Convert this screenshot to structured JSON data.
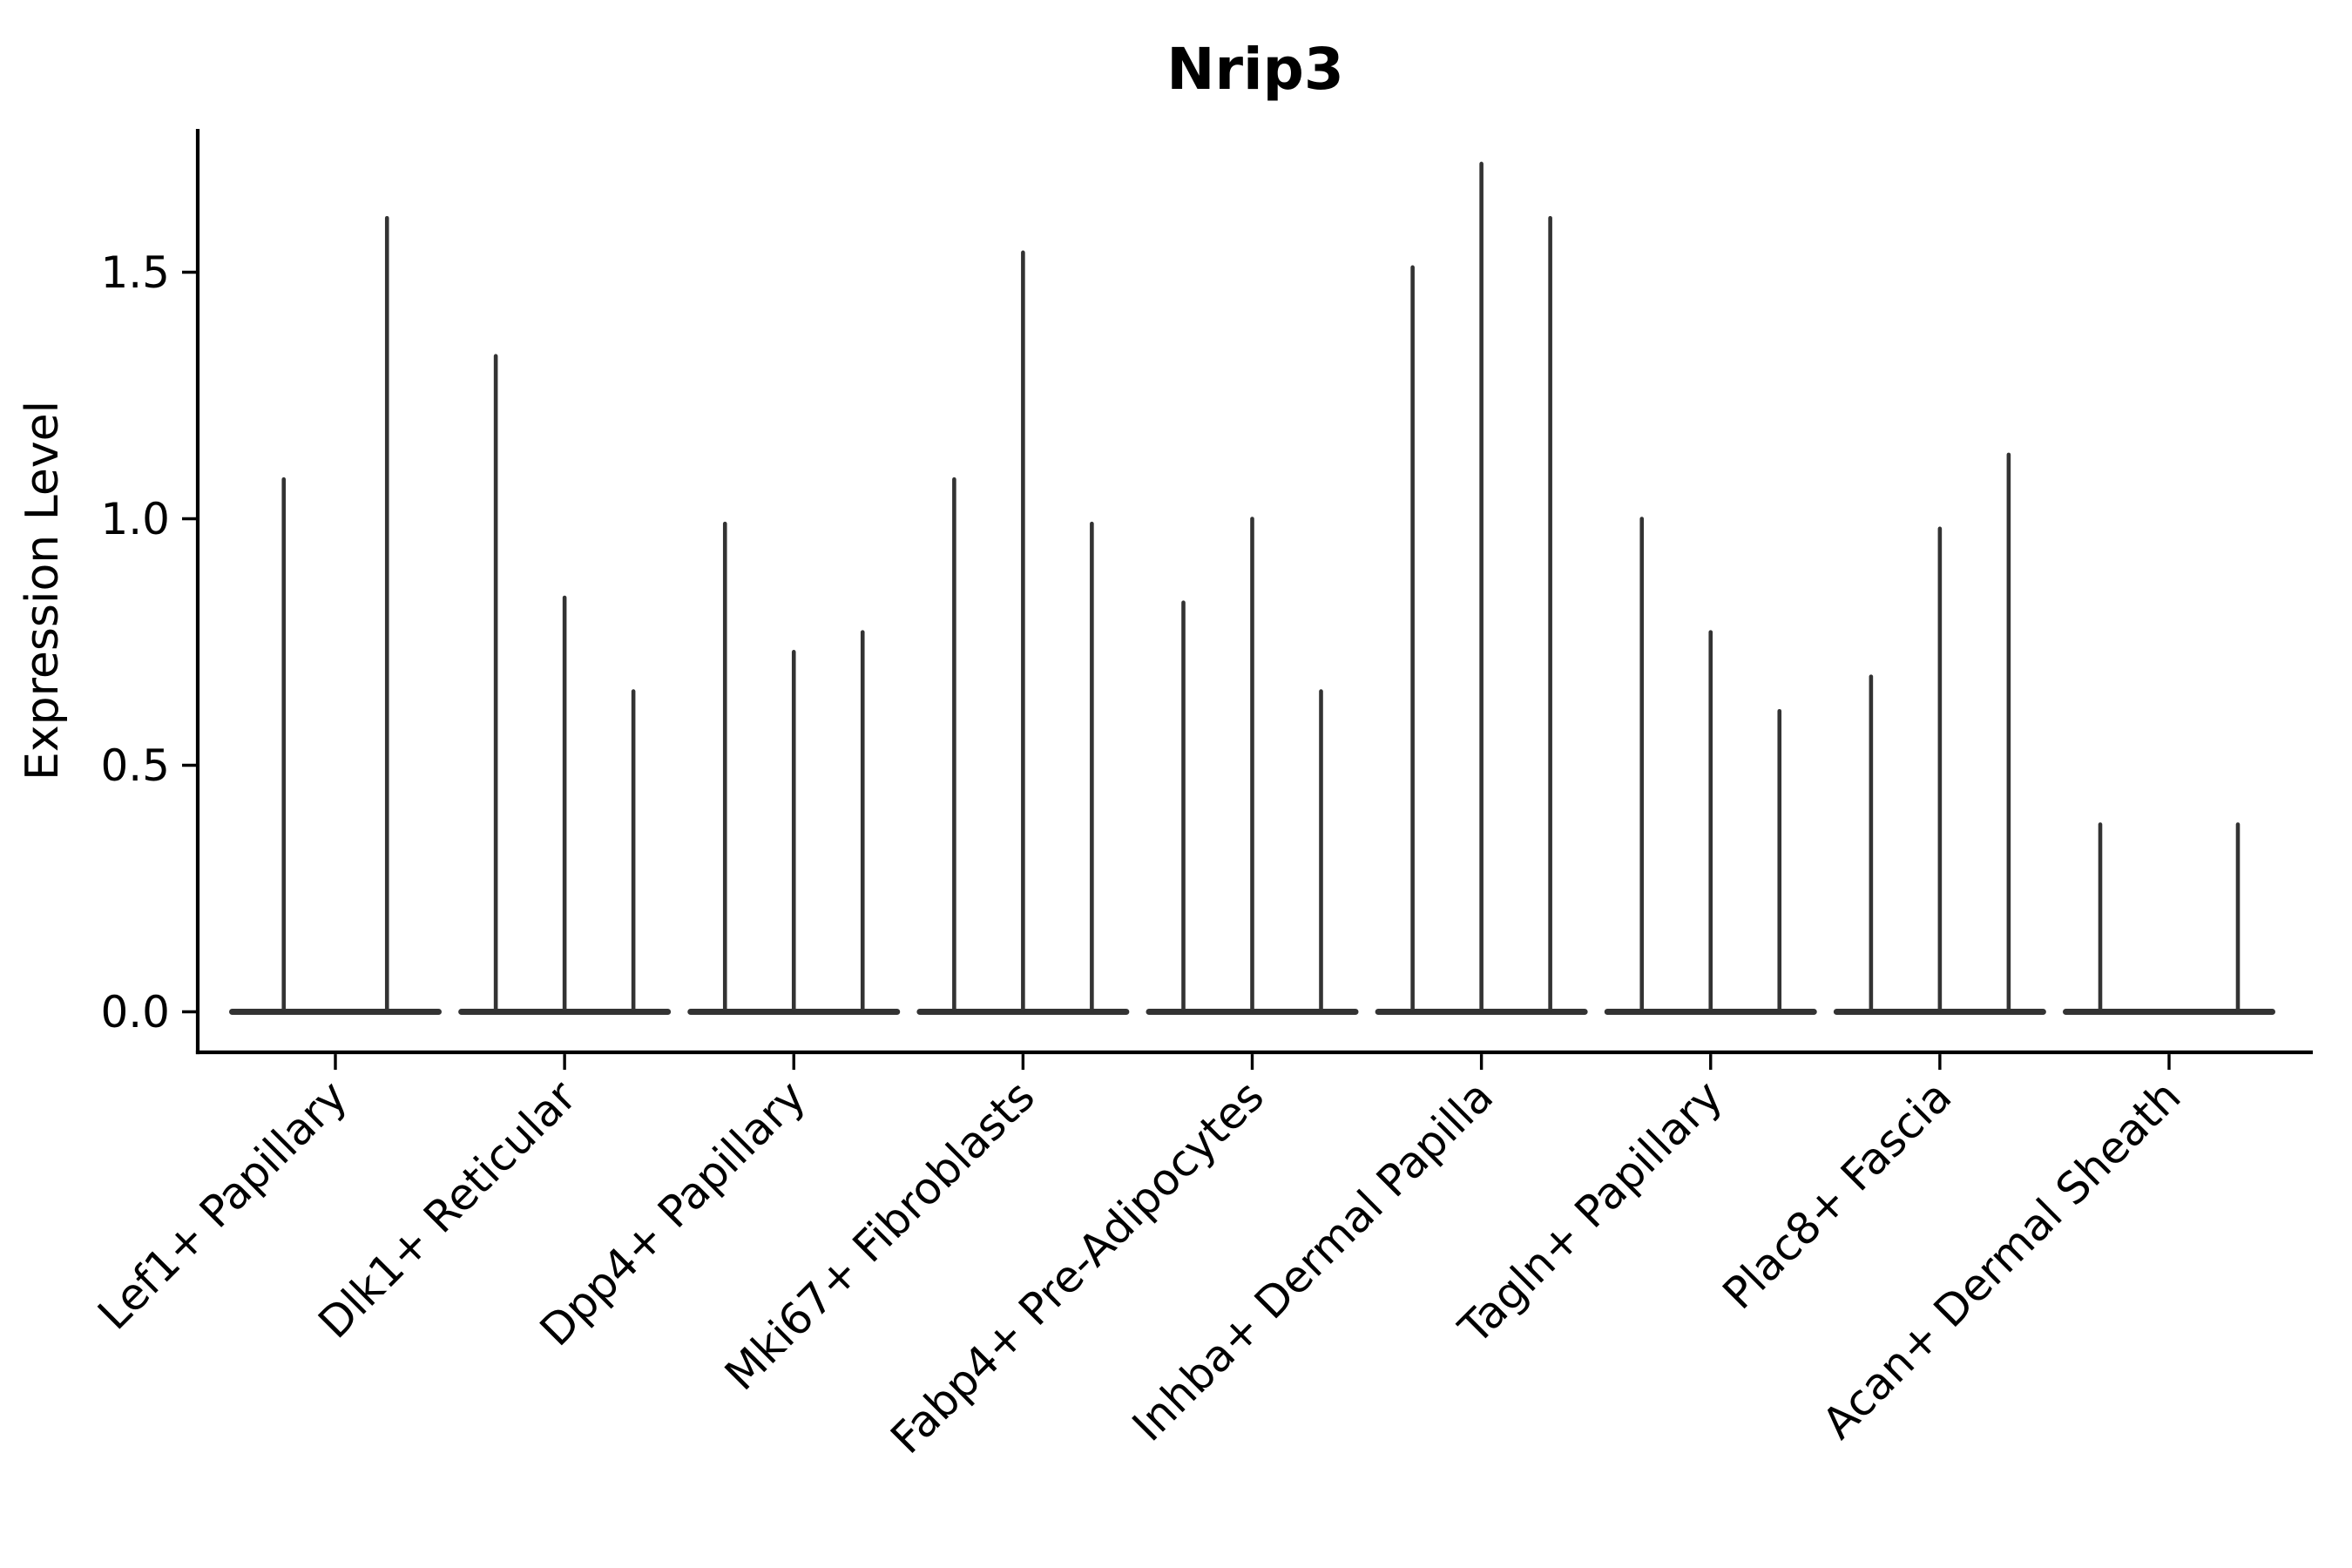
{
  "title": "Nrip3",
  "axes": {
    "y_label": "Expression Level",
    "y_tick_labels": [
      "0.0",
      "0.5",
      "1.0",
      "1.5"
    ]
  },
  "colors": {
    "violin": "#333333",
    "axis": "#000000",
    "background": "#ffffff",
    "text": "#000000"
  },
  "chart_data": {
    "type": "violin",
    "title": "Nrip3",
    "xlabel": "",
    "ylabel": "Expression Level",
    "ylim": [
      0,
      1.79
    ],
    "y_ticks": [
      0.0,
      0.5,
      1.0,
      1.5
    ],
    "y_tick_labels": [
      "0.0",
      "0.5",
      "1.0",
      "1.5"
    ],
    "grid": false,
    "legend": false,
    "x_tick_rotation_deg": 45,
    "categories": [
      "Lef1+ Papillary",
      "Dlk1+ Reticular",
      "Dpp4+ Papillary",
      "Mki67+ Fibroblasts",
      "Fabp4+ Pre-Adipocytes",
      "Inhba+ Dermal Papilla",
      "Tagln+ Papillary",
      "Plac8+ Fascia",
      "Acan+ Dermal Sheath"
    ],
    "groups": [
      {
        "label": "Lef1+ Papillary",
        "violin_maxima": [
          1.08,
          1.61
        ]
      },
      {
        "label": "Dlk1+ Reticular",
        "violin_maxima": [
          1.33,
          0.84,
          0.65
        ]
      },
      {
        "label": "Dpp4+ Papillary",
        "violin_maxima": [
          0.99,
          0.73,
          0.77
        ]
      },
      {
        "label": "Mki67+ Fibroblasts",
        "violin_maxima": [
          1.08,
          1.54,
          0.99
        ]
      },
      {
        "label": "Fabp4+ Pre-Adipocytes",
        "violin_maxima": [
          0.83,
          1.0,
          0.65
        ]
      },
      {
        "label": "Inhba+ Dermal Papilla",
        "violin_maxima": [
          1.51,
          1.72,
          1.61
        ]
      },
      {
        "label": "Tagln+ Papillary",
        "violin_maxima": [
          1.0,
          0.77,
          0.61
        ]
      },
      {
        "label": "Plac8+ Fascia",
        "violin_maxima": [
          0.68,
          0.98,
          1.13
        ]
      },
      {
        "label": "Acan+ Dermal Sheath",
        "violin_maxima": [
          0.38,
          0.0,
          0.38
        ]
      }
    ]
  }
}
